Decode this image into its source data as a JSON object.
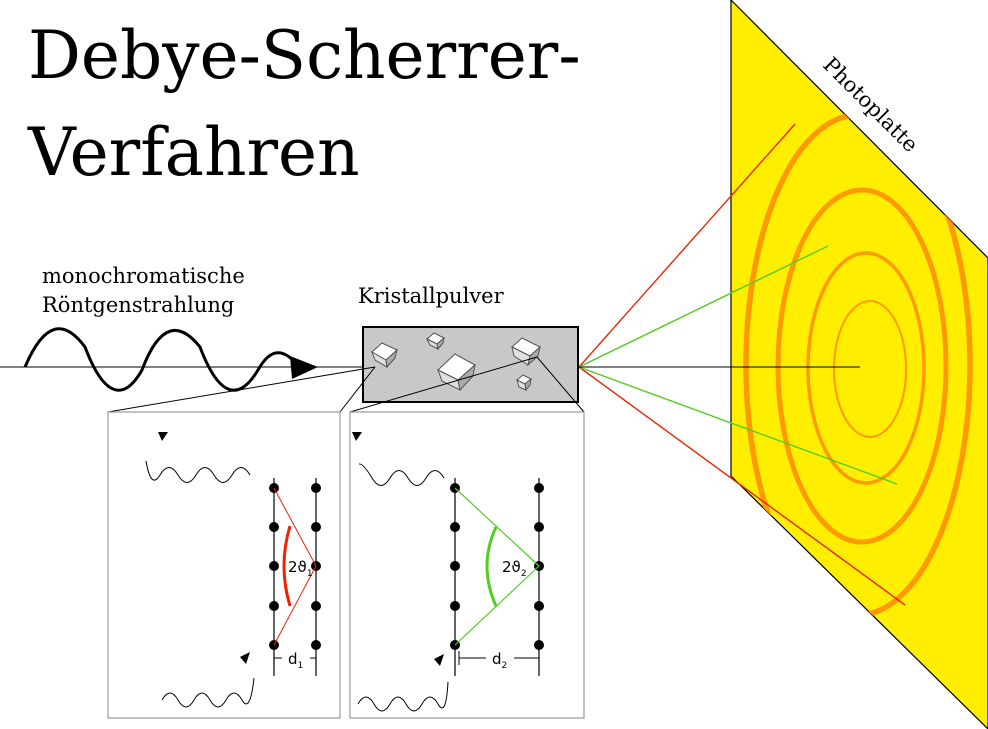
{
  "title": {
    "line1": "Debye-Scherrer-",
    "line2": "Verfahren"
  },
  "labels": {
    "radiation_line1": "monochromatische",
    "radiation_line2": "Röntgenstrahlung",
    "powder": "Kristallpulver",
    "plate": "Photoplatte"
  },
  "inset_left": {
    "angle": "2ϑ",
    "angle_sub": "1",
    "spacing": "d",
    "spacing_sub": "1"
  },
  "inset_right": {
    "angle": "2ϑ",
    "angle_sub": "2",
    "spacing": "d",
    "spacing_sub": "2"
  },
  "colors": {
    "plate": "#ffee00",
    "ring": "#ff9900",
    "beam_red": "#ee2200",
    "beam_green": "#55cc22",
    "powder_box": "#c8c8c8"
  }
}
